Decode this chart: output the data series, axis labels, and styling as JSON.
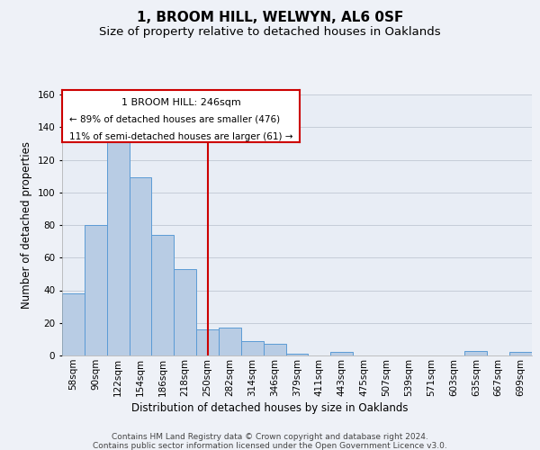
{
  "title": "1, BROOM HILL, WELWYN, AL6 0SF",
  "subtitle": "Size of property relative to detached houses in Oaklands",
  "xlabel": "Distribution of detached houses by size in Oaklands",
  "ylabel": "Number of detached properties",
  "bar_labels": [
    "58sqm",
    "90sqm",
    "122sqm",
    "154sqm",
    "186sqm",
    "218sqm",
    "250sqm",
    "282sqm",
    "314sqm",
    "346sqm",
    "379sqm",
    "411sqm",
    "443sqm",
    "475sqm",
    "507sqm",
    "539sqm",
    "571sqm",
    "603sqm",
    "635sqm",
    "667sqm",
    "699sqm"
  ],
  "bar_values": [
    38,
    80,
    133,
    109,
    74,
    53,
    16,
    17,
    9,
    7,
    1,
    0,
    2,
    0,
    0,
    0,
    0,
    0,
    3,
    0,
    2
  ],
  "bar_color": "#b8cce4",
  "bar_edge_color": "#5b9bd5",
  "vline_x_idx": 6,
  "vline_color": "#cc0000",
  "ylim": [
    0,
    160
  ],
  "yticks": [
    0,
    20,
    40,
    60,
    80,
    100,
    120,
    140,
    160
  ],
  "annotation_title": "1 BROOM HILL: 246sqm",
  "annotation_line1": "← 89% of detached houses are smaller (476)",
  "annotation_line2": "11% of semi-detached houses are larger (61) →",
  "footer_line1": "Contains HM Land Registry data © Crown copyright and database right 2024.",
  "footer_line2": "Contains public sector information licensed under the Open Government Licence v3.0.",
  "background_color": "#eef1f7",
  "plot_bg_color": "#e8edf5",
  "grid_color": "#c5ccd8",
  "title_fontsize": 11,
  "subtitle_fontsize": 9.5,
  "axis_label_fontsize": 8.5,
  "tick_fontsize": 7.5,
  "footer_fontsize": 6.5,
  "ann_fontsize_title": 8,
  "ann_fontsize_body": 7.5
}
